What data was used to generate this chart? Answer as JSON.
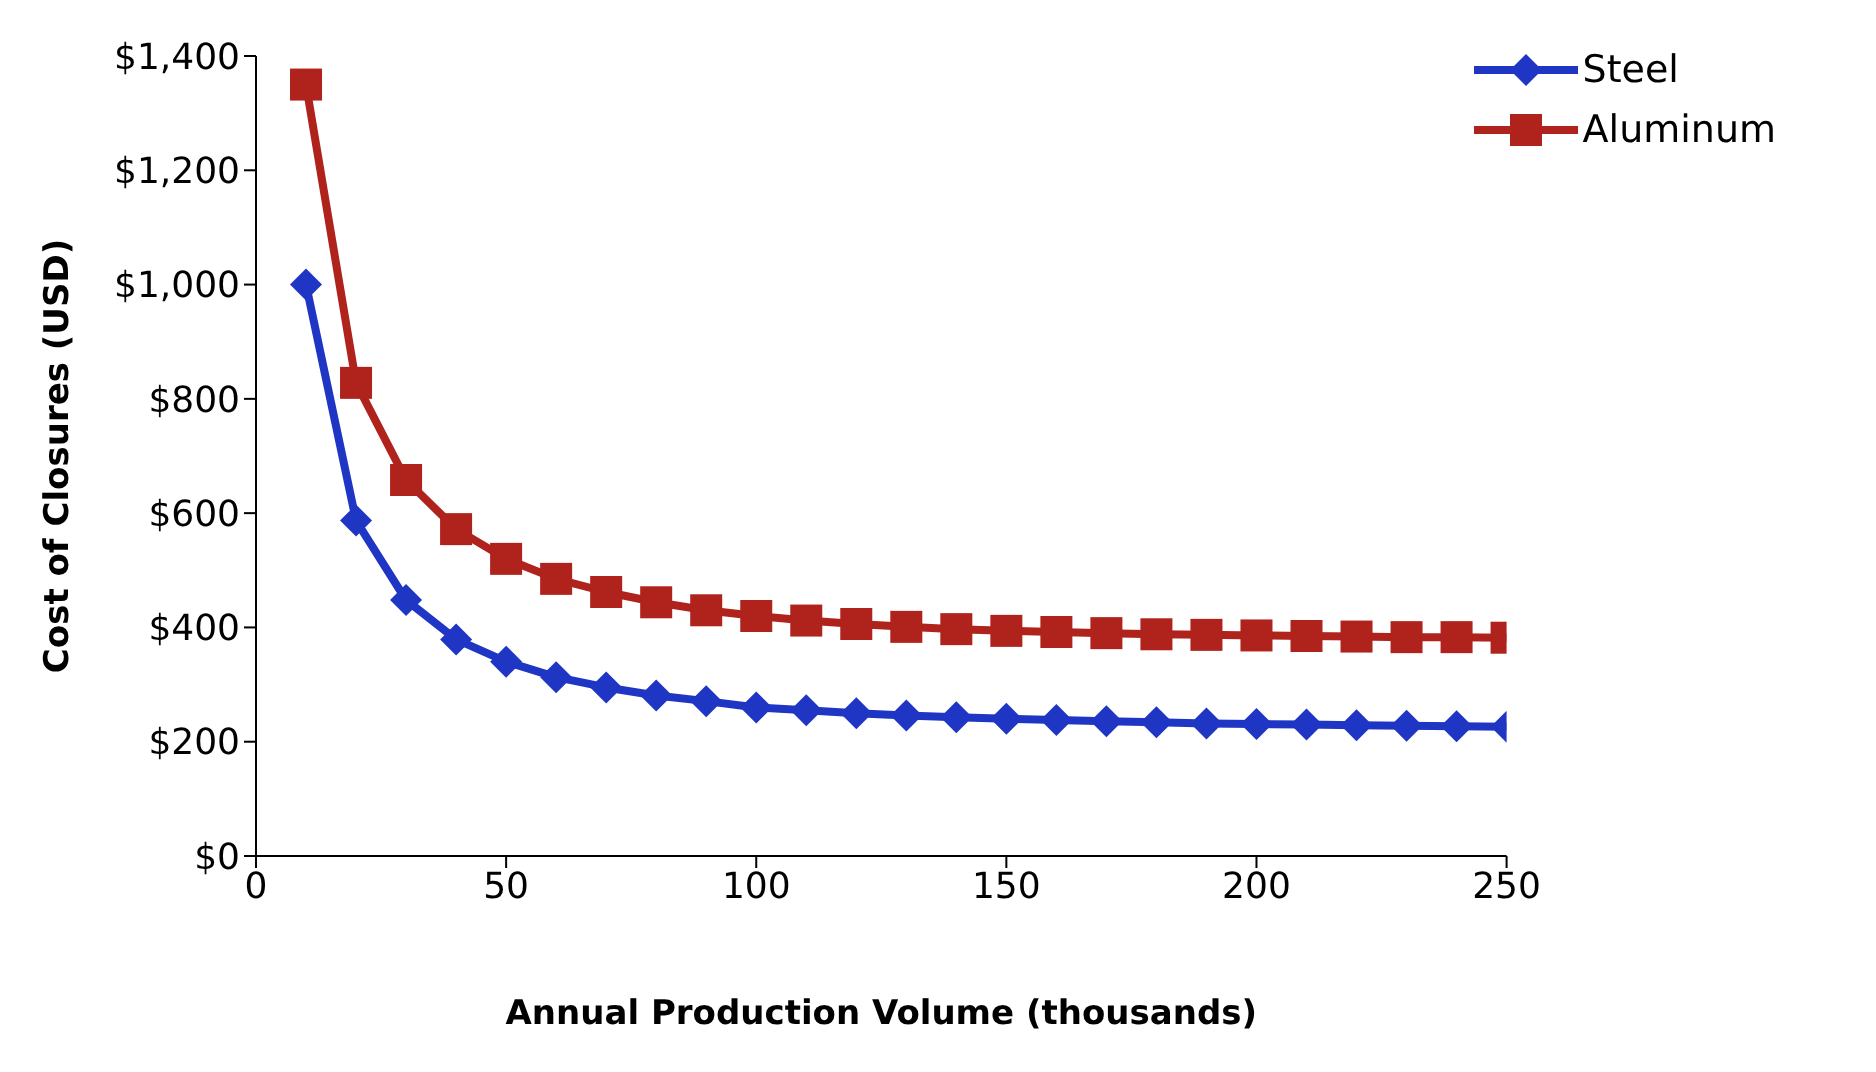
{
  "chart_data": {
    "type": "line",
    "xlabel": "Annual Production Volume (thousands)",
    "ylabel": "Cost of Closures (USD)",
    "x": [
      10,
      20,
      30,
      40,
      50,
      60,
      70,
      80,
      90,
      100,
      110,
      120,
      130,
      140,
      150,
      160,
      170,
      180,
      190,
      200,
      210,
      220,
      230,
      240,
      250
    ],
    "series": [
      {
        "name": "Steel",
        "color": "#1f35c4",
        "marker": "diamond",
        "values": [
          1000,
          587,
          448,
          379,
          340,
          313,
          295,
          281,
          271,
          260,
          255,
          250,
          246,
          243,
          240,
          238,
          236,
          234,
          232,
          231,
          230,
          229,
          228,
          227,
          226
        ]
      },
      {
        "name": "Aluminum",
        "color": "#b0221c",
        "marker": "square",
        "values": [
          1350,
          828,
          658,
          572,
          520,
          485,
          462,
          444,
          430,
          420,
          412,
          406,
          401,
          397,
          394,
          392,
          390,
          388,
          387,
          386,
          385,
          384,
          383,
          383,
          382
        ]
      }
    ],
    "xlim": [
      0,
      250
    ],
    "xticks": [
      0,
      50,
      100,
      150,
      200,
      250
    ],
    "ylim": [
      0,
      1400
    ],
    "yticks": [
      {
        "value": 0,
        "label": "$0"
      },
      {
        "value": 200,
        "label": "$200"
      },
      {
        "value": 400,
        "label": "$400"
      },
      {
        "value": 600,
        "label": "$600"
      },
      {
        "value": 800,
        "label": "$800"
      },
      {
        "value": 1000,
        "label": "$1,000"
      },
      {
        "value": 1200,
        "label": "$1,200"
      },
      {
        "value": 1400,
        "label": "$1,400"
      }
    ],
    "grid": false,
    "legend": "top right",
    "line_style": "solid"
  }
}
